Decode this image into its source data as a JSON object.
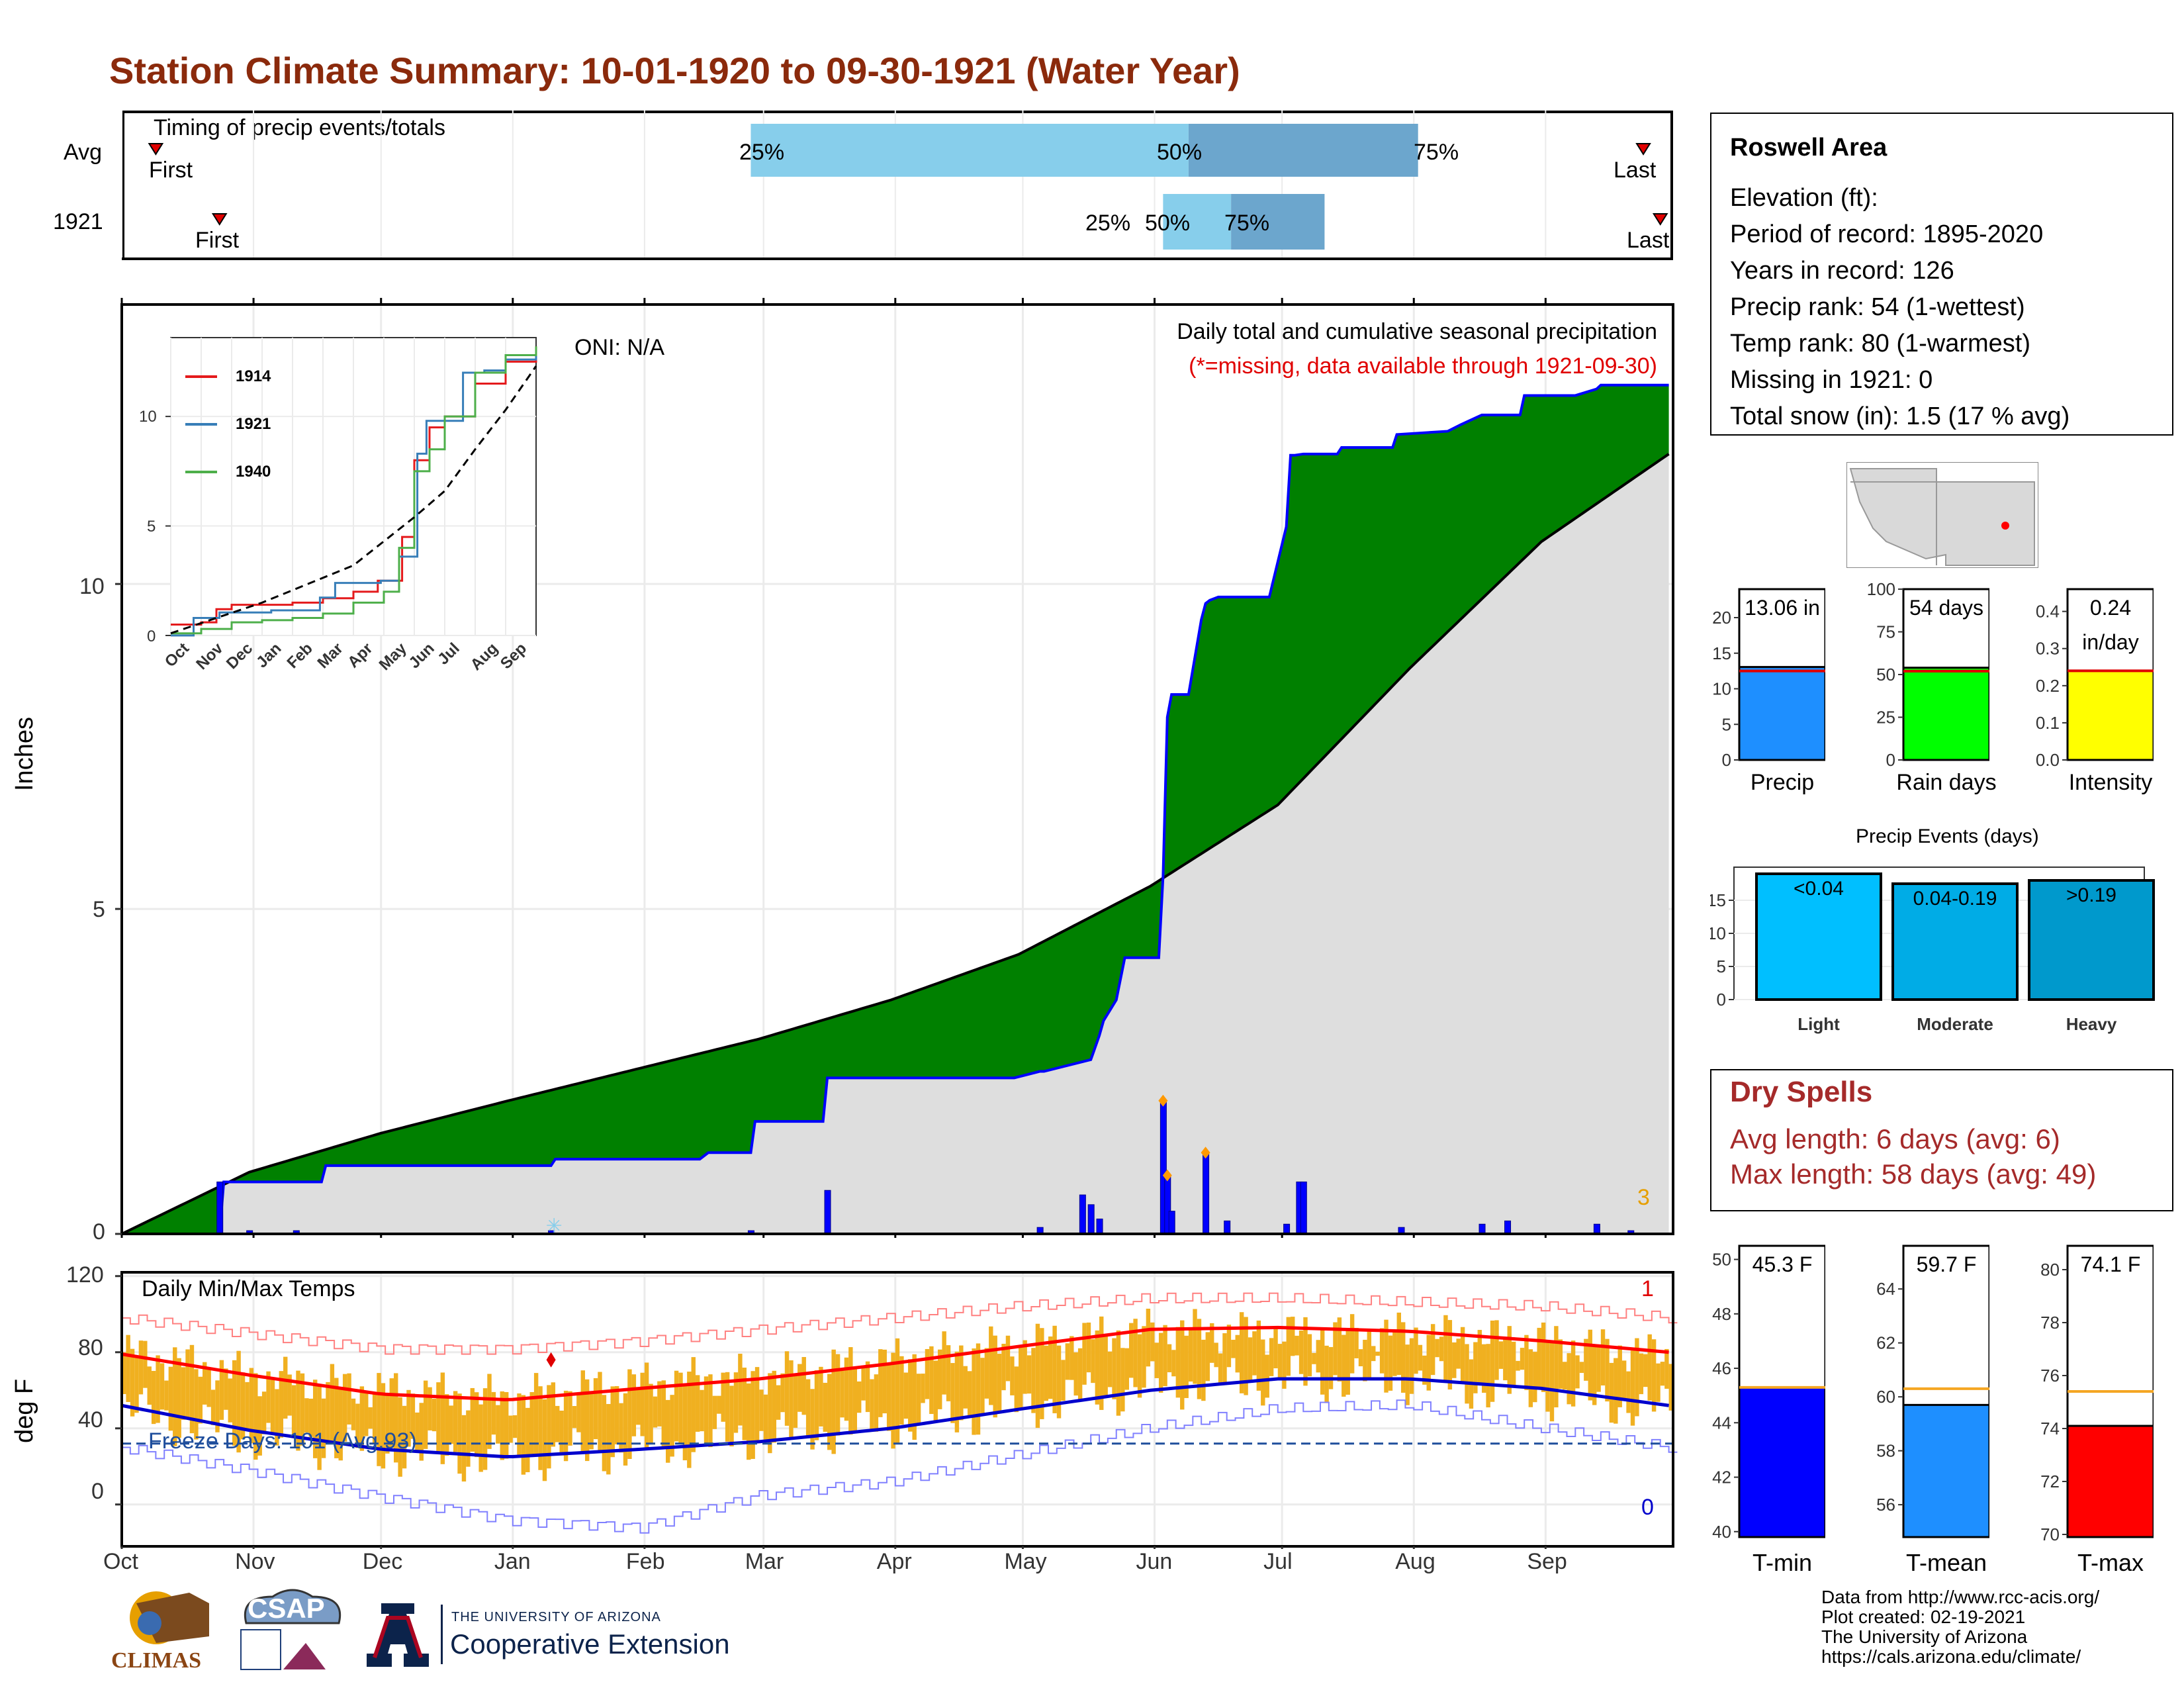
{
  "title": "Station Climate Summary: 10-01-1920 to 09-30-1921 (Water Year)",
  "timing": {
    "label": "Timing of precip events/totals",
    "rows": [
      {
        "name": "Avg",
        "first_label": "First",
        "last_label": "Last",
        "p25": "25%",
        "p50": "50%",
        "p75": "75%"
      },
      {
        "name": "1921",
        "first_label": "First",
        "last_label": "Last",
        "p25": "25%",
        "p50": "50%",
        "p75": "75%"
      }
    ],
    "avg_days": {
      "first": 8,
      "p25": 148,
      "p50": 251,
      "p75": 305,
      "last": 358
    },
    "y1921_days": {
      "first": 23,
      "p25": 245,
      "p50": 261,
      "p75": 283,
      "last": 362
    }
  },
  "precip_panel": {
    "ylabel": "Inches",
    "oni": "ONI: N/A",
    "caption1": "Daily total and cumulative seasonal precipitation",
    "caption2": "(*=missing, data available through 1921-09-30)",
    "corner_count": "3",
    "yticks": [
      "0",
      "5",
      "10"
    ]
  },
  "inset": {
    "legend": [
      "1914",
      "1921",
      "1940"
    ],
    "yticks": [
      "0",
      "5",
      "10"
    ],
    "months": [
      "Oct",
      "Nov",
      "Dec",
      "Jan",
      "Feb",
      "Mar",
      "Apr",
      "May",
      "Jun",
      "Jul",
      "Aug",
      "Sep"
    ]
  },
  "temp_panel": {
    "ylabel": "deg F",
    "label": "Daily Min/Max Temps",
    "freeze": "Freeze Days: 101 (Avg.93)",
    "corner_top": "1",
    "corner_bottom": "0",
    "yticks": [
      "0",
      "40",
      "80",
      "120"
    ]
  },
  "months": [
    "Oct",
    "Nov",
    "Dec",
    "Jan",
    "Feb",
    "Mar",
    "Apr",
    "May",
    "Jun",
    "Jul",
    "Aug",
    "Sep"
  ],
  "info": {
    "name": "Roswell Area",
    "lines": [
      "Elevation (ft):",
      "Period of record: 1895-2020",
      "Years in record: 126",
      "Precip rank: 54 (1-wettest)",
      "Temp rank: 80 (1-warmest)",
      "Missing in 1921: 0",
      "Total snow (in): 1.5 (17 % avg)"
    ]
  },
  "gauges": [
    {
      "name": "Precip",
      "value_label": "13.06 in",
      "value_label2": "",
      "value": 13.06,
      "avg": 12.5,
      "ymax": 24,
      "yticks": [
        "0",
        "5",
        "10",
        "15",
        "20"
      ],
      "tickvals": [
        0,
        5,
        10,
        15,
        20
      ],
      "color": "#1e8fff"
    },
    {
      "name": "Rain days",
      "value_label": "54 days",
      "value_label2": "",
      "value": 54,
      "avg": 52,
      "ymax": 100,
      "yticks": [
        "0",
        "25",
        "50",
        "75",
        "100"
      ],
      "tickvals": [
        0,
        25,
        50,
        75,
        100
      ],
      "color": "#00ff00"
    },
    {
      "name": "Intensity",
      "value_label": "0.24",
      "value_label2": "in/day",
      "value": 0.24,
      "avg": 0.24,
      "ymax": 0.46,
      "yticks": [
        "0.0",
        "0.1",
        "0.2",
        "0.3",
        "0.4"
      ],
      "tickvals": [
        0,
        0.1,
        0.2,
        0.3,
        0.4
      ],
      "color": "#ffff00"
    }
  ],
  "events": {
    "title": "Precip Events (days)",
    "categories": [
      "Light",
      "Moderate",
      "Heavy"
    ],
    "bar_labels": [
      "<0.04",
      "0.04-0.19",
      ">0.19"
    ],
    "values": [
      19,
      17.5,
      18
    ],
    "colors": [
      "#00bfff",
      "#00ace6",
      "#0099cc"
    ],
    "yticks": [
      "0",
      "5",
      "10",
      "15"
    ]
  },
  "dry_spells": {
    "title": "Dry Spells",
    "line1": "Avg length: 6 days (avg: 6)",
    "line2": "Max length: 58 days (avg: 49)"
  },
  "temp_gauges": [
    {
      "name": "T-min",
      "value_label": "45.3 F",
      "value": 45.3,
      "avg": 45.3,
      "ymin": 39.8,
      "ymax": 50.5,
      "yticks": [
        "40",
        "42",
        "44",
        "46",
        "48",
        "50"
      ],
      "tickvals": [
        40,
        42,
        44,
        46,
        48,
        50
      ],
      "color": "#0000ff"
    },
    {
      "name": "T-mean",
      "value_label": "59.7 F",
      "value": 59.7,
      "avg": 60.3,
      "ymin": 54.8,
      "ymax": 65.6,
      "yticks": [
        "56",
        "58",
        "60",
        "62",
        "64"
      ],
      "tickvals": [
        56,
        58,
        60,
        62,
        64
      ],
      "color": "#1e8fff"
    },
    {
      "name": "T-max",
      "value_label": "74.1 F",
      "value": 74.1,
      "avg": 75.4,
      "ymin": 69.9,
      "ymax": 80.9,
      "yticks": [
        "70",
        "72",
        "74",
        "76",
        "78",
        "80"
      ],
      "tickvals": [
        70,
        72,
        74,
        76,
        78,
        80
      ],
      "color": "#ff0000"
    }
  ],
  "footer": {
    "lines": [
      "Data from http://www.rcc-acis.org/",
      "Plot created: 02-19-2021",
      "The University of Arizona",
      "https://cals.arizona.edu/climate/"
    ]
  },
  "logos": {
    "climas": "CLIMAS",
    "csap": "CSAP",
    "ua_small": "THE UNIVERSITY OF ARIZONA",
    "ua_big": "Cooperative Extension"
  },
  "chart_data": [
    {
      "type": "area",
      "title": "Daily total and cumulative seasonal precipitation",
      "ylabel": "Inches",
      "ylim": [
        0,
        14.3
      ],
      "xlim_days": [
        0,
        365
      ],
      "series": [
        {
          "name": "cumulative 1921",
          "x_day": [
            0,
            23,
            24,
            47,
            48,
            101,
            102,
            136,
            138,
            148,
            149,
            165,
            166,
            210,
            216,
            217,
            228,
            230,
            231,
            234,
            236,
            244,
            245,
            246,
            247,
            251,
            254,
            255,
            256,
            258,
            259,
            263,
            264,
            270,
            274,
            275,
            276,
            278,
            286,
            287,
            292,
            293,
            299,
            300,
            312,
            315,
            320,
            329,
            330,
            342,
            347,
            348,
            364
          ],
          "y": [
            0,
            0,
            0.8,
            0.8,
            1.05,
            1.05,
            1.15,
            1.15,
            1.25,
            1.25,
            1.73,
            1.73,
            2.4,
            2.4,
            2.5,
            2.5,
            2.68,
            3.05,
            3.28,
            3.6,
            4.25,
            4.25,
            5.5,
            7.95,
            8.3,
            8.3,
            9.45,
            9.7,
            9.75,
            9.8,
            9.8,
            9.8,
            9.8,
            9.8,
            10.88,
            11.98,
            11.98,
            12.0,
            12.0,
            12.1,
            12.1,
            12.1,
            12.1,
            12.3,
            12.35,
            12.45,
            12.6,
            12.6,
            12.9,
            12.9,
            13.0,
            13.06,
            13.06
          ]
        },
        {
          "name": "average cumulative",
          "x_day": [
            0,
            30,
            61,
            91,
            122,
            150,
            181,
            211,
            242,
            272,
            303,
            334,
            364
          ],
          "y": [
            0,
            0.95,
            1.55,
            2.05,
            2.55,
            3.0,
            3.6,
            4.3,
            5.35,
            6.6,
            8.7,
            10.65,
            12.0
          ]
        }
      ],
      "daily_totals_inches": [
        {
          "day": 23,
          "value": 0.8
        },
        {
          "day": 30,
          "value": 0.05
        },
        {
          "day": 41,
          "value": 0.05
        },
        {
          "day": 101,
          "value": 0.05
        },
        {
          "day": 148,
          "value": 0.05
        },
        {
          "day": 166,
          "value": 0.67
        },
        {
          "day": 216,
          "value": 0.1
        },
        {
          "day": 226,
          "value": 0.6
        },
        {
          "day": 228,
          "value": 0.45
        },
        {
          "day": 230,
          "value": 0.23
        },
        {
          "day": 245,
          "value": 2.05
        },
        {
          "day": 246,
          "value": 0.9
        },
        {
          "day": 247,
          "value": 0.35
        },
        {
          "day": 255,
          "value": 1.25
        },
        {
          "day": 260,
          "value": 0.2
        },
        {
          "day": 274,
          "value": 0.15
        },
        {
          "day": 277,
          "value": 0.8
        },
        {
          "day": 278,
          "value": 0.8
        },
        {
          "day": 301,
          "value": 0.1
        },
        {
          "day": 320,
          "value": 0.15
        },
        {
          "day": 326,
          "value": 0.2
        },
        {
          "day": 347,
          "value": 0.15
        },
        {
          "day": 355,
          "value": 0.05
        }
      ]
    },
    {
      "type": "line",
      "title": "Daily Min/Max Temps",
      "ylabel": "deg F",
      "ylim": [
        -22,
        122
      ],
      "series": [
        {
          "name": "avg max",
          "x_day": [
            0,
            30,
            61,
            91,
            122,
            150,
            181,
            211,
            242,
            272,
            303,
            334,
            364
          ],
          "y": [
            79,
            68,
            58,
            55,
            61,
            66,
            74,
            83,
            92,
            93,
            91,
            86,
            80
          ]
        },
        {
          "name": "avg min",
          "x_day": [
            0,
            30,
            61,
            91,
            122,
            150,
            181,
            211,
            242,
            272,
            303,
            334,
            364
          ],
          "y": [
            52,
            39,
            29,
            25,
            29,
            33,
            40,
            50,
            60,
            66,
            66,
            61,
            52
          ]
        },
        {
          "name": "record high",
          "x_day": [
            0,
            30,
            61,
            91,
            122,
            150,
            181,
            211,
            242,
            272,
            303,
            334,
            364
          ],
          "y": [
            98,
            90,
            82,
            82,
            86,
            92,
            98,
            104,
            108,
            108,
            106,
            104,
            98
          ]
        },
        {
          "name": "record low",
          "x_day": [
            0,
            30,
            61,
            91,
            122,
            150,
            181,
            211,
            242,
            272,
            303,
            334,
            364
          ],
          "y": [
            30,
            18,
            4,
            -8,
            -12,
            5,
            12,
            26,
            40,
            50,
            52,
            40,
            30
          ]
        },
        {
          "name": "daily max 1921",
          "x_day": [
            0,
            30,
            61,
            91,
            122,
            150,
            181,
            211,
            242,
            272,
            303,
            334,
            364
          ],
          "y": [
            80,
            68,
            60,
            56,
            64,
            68,
            76,
            84,
            92,
            90,
            90,
            86,
            78
          ]
        },
        {
          "name": "daily min 1921",
          "x_day": [
            0,
            30,
            61,
            91,
            122,
            150,
            181,
            211,
            242,
            272,
            303,
            334,
            364
          ],
          "y": [
            50,
            36,
            28,
            24,
            30,
            36,
            42,
            52,
            62,
            66,
            66,
            58,
            50
          ]
        }
      ],
      "freeze_line_y": 32
    },
    {
      "type": "line",
      "title": "Inset cumulative precip",
      "series": [
        {
          "name": "1914",
          "x_month": [
            0,
            1,
            1.5,
            2,
            3,
            4,
            5,
            6,
            6.8,
            7.3,
            7.6,
            8,
            8.5,
            9,
            10,
            11,
            12
          ],
          "y": [
            0.5,
            0.6,
            1.2,
            1.4,
            1.4,
            1.5,
            1.7,
            2.0,
            2.5,
            2.5,
            4.5,
            8.0,
            9.5,
            10.0,
            11.5,
            12.5,
            13.2
          ]
        },
        {
          "name": "1921",
          "x_month": [
            0,
            0.75,
            1.6,
            3.3,
            4.9,
            5.4,
            6.9,
            7.5,
            8.1,
            8.4,
            9.2,
            9.6,
            10.3,
            11,
            12
          ],
          "y": [
            0,
            0.8,
            1.05,
            1.15,
            1.73,
            2.4,
            2.5,
            3.6,
            8.3,
            9.8,
            9.8,
            12.0,
            12.1,
            12.6,
            13.06
          ]
        },
        {
          "name": "1940",
          "x_month": [
            0,
            1,
            2,
            3,
            4,
            5,
            6,
            7,
            7.5,
            8,
            8.5,
            9,
            10,
            11,
            12
          ],
          "y": [
            0.1,
            0.3,
            0.6,
            0.7,
            0.8,
            1.0,
            1.5,
            2.0,
            4.0,
            7.5,
            8.5,
            10.0,
            12.0,
            12.8,
            13.2
          ]
        },
        {
          "name": "average",
          "x_month": [
            0,
            3,
            6,
            8,
            9,
            10,
            11,
            12
          ],
          "y": [
            0.1,
            1.5,
            3.2,
            5.4,
            6.6,
            8.5,
            10.3,
            12.3
          ]
        }
      ]
    }
  ]
}
